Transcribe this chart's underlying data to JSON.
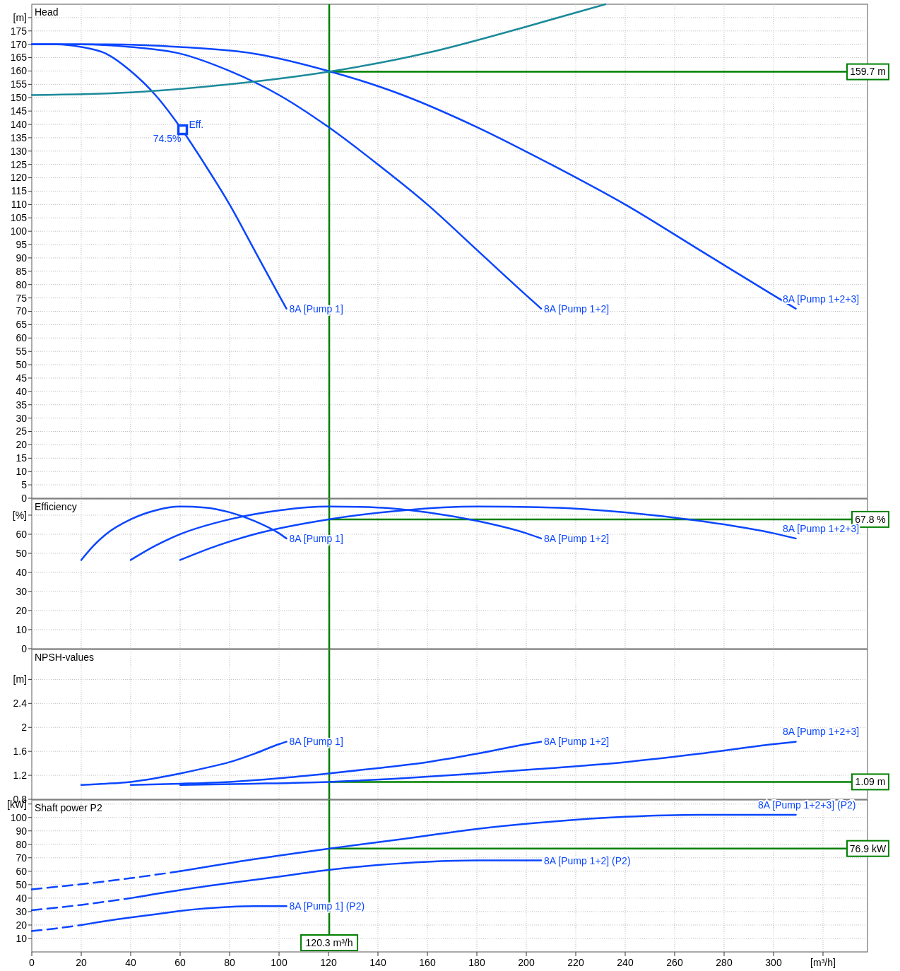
{
  "chart_data": [
    {
      "type": "line",
      "title": "Head",
      "xlim": [
        0,
        338
      ],
      "ylim": [
        0,
        185
      ],
      "grid": true,
      "tick_labels": "y",
      "xticks": [
        0,
        20,
        40,
        60,
        80,
        100,
        120,
        140,
        160,
        180,
        200,
        220,
        240,
        260,
        280,
        300
      ],
      "yticks": [
        0,
        5,
        10,
        15,
        20,
        25,
        30,
        35,
        40,
        45,
        50,
        55,
        60,
        65,
        70,
        75,
        80,
        85,
        90,
        95,
        100,
        105,
        110,
        115,
        120,
        125,
        130,
        135,
        140,
        145,
        150,
        155,
        160,
        165,
        170,
        175,
        {
          "value": 180,
          "label": "[m]"
        }
      ],
      "series": [
        {
          "name": "8A [Pump 1]",
          "color": "#0a46ff",
          "x": [
            0,
            10,
            20,
            30,
            40,
            50,
            60,
            70,
            80,
            90,
            100,
            103
          ],
          "values": [
            170,
            170,
            169,
            166.5,
            160,
            151,
            139,
            125,
            110,
            93,
            76,
            71
          ]
        },
        {
          "name": "8A [Pump 1+2]",
          "color": "#0a46ff",
          "x": [
            0,
            20,
            40,
            60,
            80,
            100,
            120,
            140,
            160,
            180,
            200,
            206
          ],
          "values": [
            170,
            170,
            169,
            166.5,
            160,
            151,
            139,
            125,
            110,
            93,
            76,
            71
          ]
        },
        {
          "name": "8A [Pump 1+2+3]",
          "color": "#0a46ff",
          "x": [
            0,
            30,
            60,
            90,
            120,
            150,
            180,
            210,
            240,
            270,
            300,
            309
          ],
          "values": [
            170,
            170,
            169,
            166.5,
            160,
            151,
            139,
            125,
            110,
            93,
            76,
            71
          ]
        },
        {
          "color": "#1b8a9a",
          "x": [
            0,
            40,
            80,
            120,
            160,
            200,
            232
          ],
          "values": [
            151,
            152,
            155,
            159.7,
            166.8,
            176.6,
            185
          ]
        },
        {
          "type": "scatter",
          "marker": "square",
          "color": "#0a46ff",
          "x": [
            61
          ],
          "values": [
            138
          ]
        }
      ],
      "annotations": [
        {
          "text": "Eff.",
          "x": 61,
          "y": 138
        },
        {
          "text": "74.5%",
          "x": 61,
          "y": 138
        }
      ],
      "ref_lines": [
        {
          "axis": "x",
          "value": 120.3,
          "color": "#008000"
        },
        {
          "axis": "y",
          "value": 159.7,
          "label": "159.7 m",
          "color": "#008000"
        }
      ]
    },
    {
      "type": "line",
      "title": "Efficiency",
      "xlim": [
        0,
        338
      ],
      "ylim": [
        0,
        78.5
      ],
      "grid": true,
      "tick_labels": "y",
      "xticks": [
        0,
        20,
        40,
        60,
        80,
        100,
        120,
        140,
        160,
        180,
        200,
        220,
        240,
        260,
        280,
        300
      ],
      "yticks": [
        0,
        10,
        20,
        30,
        40,
        50,
        60,
        {
          "value": 70,
          "label": "[%]"
        }
      ],
      "series": [
        {
          "name": "8A [Pump 1]",
          "color": "#0a46ff",
          "x": [
            20,
            25,
            30,
            40,
            50,
            60,
            70,
            80,
            90,
            100,
            103
          ],
          "values": [
            46.5,
            54,
            60,
            67.8,
            72.5,
            74.5,
            74,
            71.5,
            67,
            60.5,
            57.8
          ]
        },
        {
          "name": "8A [Pump 1+2]",
          "color": "#0a46ff",
          "x": [
            40,
            50,
            60,
            80,
            100,
            120,
            140,
            160,
            180,
            200,
            206
          ],
          "values": [
            46.5,
            54,
            60,
            67.8,
            72.5,
            74.5,
            74,
            71.5,
            67,
            60.5,
            57.8
          ]
        },
        {
          "name": "8A [Pump 1+2+3]",
          "color": "#0a46ff",
          "x": [
            60,
            75,
            90,
            120,
            150,
            180,
            210,
            240,
            270,
            300,
            309
          ],
          "values": [
            46.5,
            54,
            60,
            67.8,
            72.5,
            74.5,
            74,
            71.5,
            67,
            60.5,
            57.8
          ]
        }
      ],
      "ref_lines": [
        {
          "axis": "x",
          "value": 120.3,
          "color": "#008000"
        },
        {
          "axis": "y",
          "value": 67.8,
          "label": "67.8 %",
          "color": "#008000"
        }
      ]
    },
    {
      "type": "line",
      "title": "NPSH-values",
      "xlim": [
        0,
        338
      ],
      "ylim": [
        0.8,
        3.3
      ],
      "grid": true,
      "tick_labels": "y",
      "xticks": [
        0,
        20,
        40,
        60,
        80,
        100,
        120,
        140,
        160,
        180,
        200,
        220,
        240,
        260,
        280,
        300
      ],
      "yticks": [
        0.8,
        1.2,
        1.6,
        2.0,
        2.4,
        {
          "value": 2.8,
          "label": "[m]"
        }
      ],
      "series": [
        {
          "name": "8A [Pump 1]",
          "color": "#0a46ff",
          "x": [
            20,
            30,
            40,
            50,
            60,
            70,
            80,
            90,
            100,
            103
          ],
          "values": [
            1.04,
            1.06,
            1.09,
            1.15,
            1.23,
            1.32,
            1.42,
            1.56,
            1.72,
            1.76
          ]
        },
        {
          "name": "8A [Pump 1+2]",
          "color": "#0a46ff",
          "x": [
            40,
            60,
            80,
            100,
            120,
            140,
            160,
            180,
            200,
            206
          ],
          "values": [
            1.04,
            1.06,
            1.09,
            1.15,
            1.23,
            1.32,
            1.42,
            1.56,
            1.72,
            1.76
          ]
        },
        {
          "name": "8A [Pump 1+2+3]",
          "color": "#0a46ff",
          "x": [
            60,
            90,
            120,
            150,
            180,
            210,
            240,
            270,
            300,
            309
          ],
          "values": [
            1.04,
            1.06,
            1.09,
            1.15,
            1.23,
            1.32,
            1.42,
            1.56,
            1.72,
            1.76
          ]
        }
      ],
      "ref_lines": [
        {
          "axis": "x",
          "value": 120.3,
          "color": "#008000"
        },
        {
          "axis": "y",
          "value": 1.09,
          "label": "1.09 m",
          "color": "#008000"
        }
      ]
    },
    {
      "type": "line",
      "title": "Shaft power P2",
      "xlim": [
        0,
        338
      ],
      "ylim": [
        0,
        113
      ],
      "grid": true,
      "xticks": [
        0,
        20,
        40,
        60,
        80,
        100,
        120,
        140,
        160,
        180,
        200,
        220,
        240,
        260,
        280,
        300,
        {
          "value": 320,
          "label": "[m³/h]"
        }
      ],
      "yticks": [
        10,
        20,
        30,
        40,
        50,
        60,
        70,
        80,
        90,
        100,
        {
          "value": 110,
          "label": "[kW]"
        }
      ],
      "series": [
        {
          "name": "8A [Pump 1] (P2)",
          "color": "#0a46ff",
          "x": [
            20,
            30,
            40,
            50,
            60,
            70,
            80,
            90,
            100,
            103
          ],
          "values": [
            20,
            23,
            25.6,
            28,
            30.5,
            32.3,
            33.5,
            34,
            34,
            34
          ]
        },
        {
          "color": "#0a46ff",
          "line_style": "dashed",
          "x": [
            0,
            10,
            20
          ],
          "values": [
            15.5,
            17.5,
            20
          ]
        },
        {
          "name": "8A [Pump 1+2] (P2)",
          "color": "#0a46ff",
          "x": [
            40,
            60,
            80,
            100,
            120,
            140,
            160,
            180,
            200,
            206
          ],
          "values": [
            40,
            46,
            51.2,
            56,
            61,
            64.6,
            67,
            68,
            68,
            68
          ]
        },
        {
          "color": "#0a46ff",
          "line_style": "dashed",
          "x": [
            0,
            20,
            40
          ],
          "values": [
            31,
            35,
            40
          ]
        },
        {
          "name": "8A [Pump 1+2+3] (P2)",
          "color": "#0a46ff",
          "x": [
            60,
            90,
            120,
            150,
            180,
            210,
            240,
            270,
            300,
            309
          ],
          "values": [
            60,
            69,
            76.8,
            84,
            91.5,
            96.9,
            100.5,
            102,
            102,
            102
          ]
        },
        {
          "color": "#0a46ff",
          "line_style": "dashed",
          "x": [
            0,
            30,
            60
          ],
          "values": [
            46.5,
            52.5,
            60
          ]
        }
      ],
      "ref_lines": [
        {
          "axis": "x",
          "value": 120.3,
          "label": "120.3 m³/h",
          "color": "#008000"
        },
        {
          "axis": "y",
          "value": 76.9,
          "label": "76.9 kW",
          "color": "#008000"
        }
      ]
    }
  ]
}
